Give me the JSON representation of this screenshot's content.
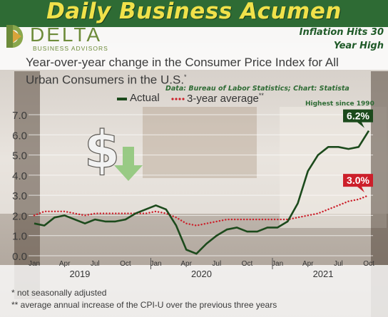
{
  "banner": {
    "title": "Daily Business Acumen"
  },
  "logo": {
    "name": "DELTA",
    "tagline": "BUSINESS ADVISORS"
  },
  "headline": {
    "line1": "Inflation Hits 30",
    "line2": "Year High"
  },
  "chart_title": {
    "text": "Year-over-year change in the Consumer Price Index for All Urban Consumers in the U.S.",
    "mark": "*"
  },
  "legend": {
    "actual": "Actual",
    "average": "3-year average",
    "average_mark": "**"
  },
  "source": "Data: Bureau of Labor Statistics; Chart: Statista",
  "annotation": "Highest since 1990",
  "footnotes": [
    "*  not seasonally adjusted",
    "** average annual increase of the CPI-U over the previous three years"
  ],
  "colors": {
    "actual": "#1c4a1c",
    "average": "#cc1f2a",
    "banner": "#2e6b34",
    "banner_text": "#f0e14a",
    "dollar": "#f2f2f2",
    "arrow": "#8fc77a"
  },
  "icons": {
    "dollar": "dollar-sign-icon",
    "arrow": "down-arrow-icon"
  },
  "chart_data": {
    "type": "line",
    "x": [
      "2019-01",
      "2019-02",
      "2019-03",
      "2019-04",
      "2019-05",
      "2019-06",
      "2019-07",
      "2019-08",
      "2019-09",
      "2019-10",
      "2019-11",
      "2019-12",
      "2020-01",
      "2020-02",
      "2020-03",
      "2020-04",
      "2020-05",
      "2020-06",
      "2020-07",
      "2020-08",
      "2020-09",
      "2020-10",
      "2020-11",
      "2020-12",
      "2021-01",
      "2021-02",
      "2021-03",
      "2021-04",
      "2021-05",
      "2021-06",
      "2021-07",
      "2021-08",
      "2021-09",
      "2021-10"
    ],
    "x_ticks": [
      "Jan",
      "Apr",
      "Jul",
      "Oct",
      "Jan",
      "Apr",
      "Jul",
      "Oct",
      "Jan",
      "Apr",
      "Jul",
      "Oct"
    ],
    "year_labels": [
      "2019",
      "2020",
      "2021"
    ],
    "y_ticks": [
      "0.0",
      "1.0",
      "2.0",
      "3.0",
      "4.0",
      "5.0",
      "6.0",
      "7.0"
    ],
    "ylim": [
      0,
      7
    ],
    "series": [
      {
        "name": "Actual",
        "values": [
          1.6,
          1.5,
          1.9,
          2.0,
          1.8,
          1.6,
          1.8,
          1.7,
          1.7,
          1.8,
          2.1,
          2.3,
          2.5,
          2.3,
          1.5,
          0.3,
          0.1,
          0.6,
          1.0,
          1.3,
          1.4,
          1.2,
          1.2,
          1.4,
          1.4,
          1.7,
          2.6,
          4.2,
          5.0,
          5.4,
          5.4,
          5.3,
          5.4,
          6.2
        ]
      },
      {
        "name": "3-year average",
        "values": [
          2.0,
          2.2,
          2.2,
          2.2,
          2.1,
          2.0,
          2.1,
          2.1,
          2.1,
          2.1,
          2.1,
          2.1,
          2.2,
          2.1,
          1.9,
          1.6,
          1.5,
          1.6,
          1.7,
          1.8,
          1.8,
          1.8,
          1.8,
          1.8,
          1.8,
          1.8,
          1.9,
          2.0,
          2.1,
          2.3,
          2.5,
          2.7,
          2.8,
          3.0
        ]
      }
    ],
    "data_labels": [
      "6.2%",
      "3.0%"
    ]
  }
}
